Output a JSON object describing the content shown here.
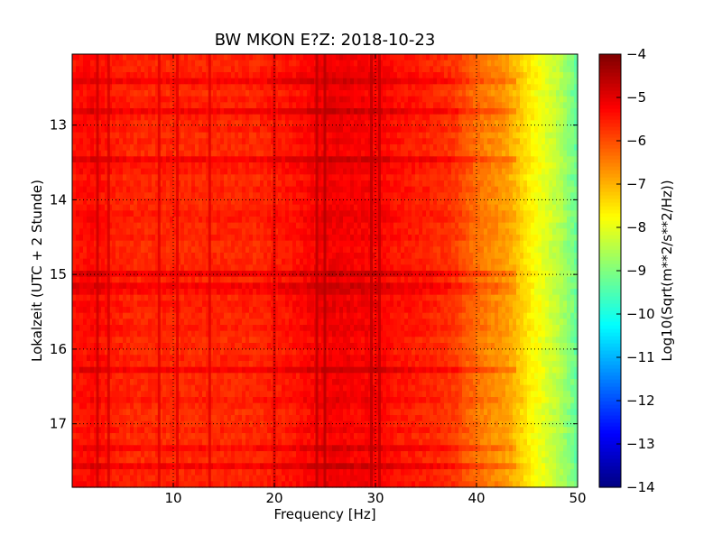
{
  "chart_data": {
    "type": "heatmap",
    "title": "BW MKON E?Z: 2018-10-23",
    "xlabel": "Frequency [Hz]",
    "ylabel": "Lokalzeit (UTC + 2 Stunde)",
    "xlim": [
      0,
      50
    ],
    "ylim": [
      17.85,
      12.05
    ],
    "y_inverted": true,
    "x_ticks": [
      10,
      20,
      30,
      40,
      50
    ],
    "x_tick_labels": [
      "10",
      "20",
      "30",
      "40",
      "50"
    ],
    "y_ticks": [
      13,
      14,
      15,
      16,
      17
    ],
    "y_tick_labels": [
      "13",
      "14",
      "15",
      "16",
      "17"
    ],
    "grid": true,
    "colormap": "jet",
    "colorbar": {
      "label": "Log10(Sqrt(m**2/s**2/Hz))",
      "range": [
        -14,
        -4
      ],
      "ticks": [
        -4,
        -5,
        -6,
        -7,
        -8,
        -9,
        -10,
        -11,
        -12,
        -13,
        -14
      ],
      "tick_labels": [
        "−4",
        "−5",
        "−6",
        "−7",
        "−8",
        "−9",
        "−10",
        "−11",
        "−12",
        "−13",
        "−14"
      ]
    },
    "frequency_profile": {
      "frequency_hz": [
        0,
        2,
        4,
        6,
        8,
        10,
        12,
        14,
        16,
        18,
        20,
        22,
        24,
        26,
        28,
        30,
        32,
        34,
        36,
        38,
        39,
        40,
        41,
        42,
        43,
        44,
        45,
        46,
        47,
        48,
        49,
        50
      ],
      "mean_log10_amplitude": [
        -5.4,
        -5.3,
        -5.5,
        -5.6,
        -5.6,
        -5.6,
        -5.6,
        -5.6,
        -5.6,
        -5.6,
        -5.5,
        -5.4,
        -5.2,
        -5.1,
        -5.2,
        -5.2,
        -5.4,
        -5.5,
        -5.6,
        -5.8,
        -6.1,
        -6.3,
        -6.5,
        -6.6,
        -6.8,
        -7.1,
        -7.5,
        -7.8,
        -8.1,
        -8.4,
        -8.8,
        -9.3
      ]
    },
    "strong_frequency_lines_hz": [
      2.5,
      3.6,
      8.6,
      10.4,
      13.6,
      20.0,
      24.2,
      25.0,
      29.6,
      30.4
    ],
    "strong_time_bands_h": [
      12.42,
      12.82,
      13.49,
      14.96,
      15.2,
      16.27,
      17.3,
      17.58
    ]
  }
}
